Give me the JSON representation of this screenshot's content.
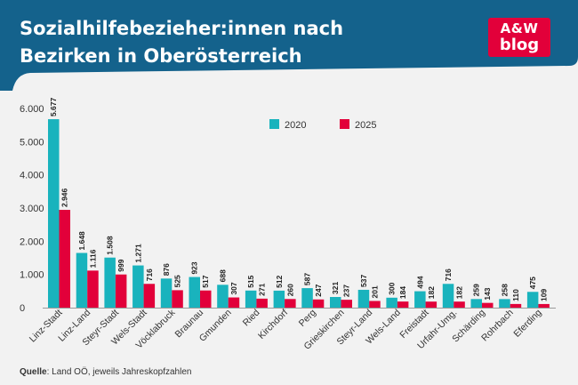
{
  "header": {
    "title": "Sozialhilfebezieher:innen nach Bezirken in Oberösterreich",
    "bg_color": "#14628c",
    "logo_line1": "A&W",
    "logo_line2": "blog"
  },
  "source": {
    "label": "Quelle",
    "text": ": Land OÖ, jeweils Jahreskopfzahlen"
  },
  "colors": {
    "series_2020": "#19b3bd",
    "series_2025": "#e2003a"
  },
  "chart_data": {
    "type": "bar",
    "title": "Sozialhilfebezieher:innen nach Bezirken in Oberösterreich",
    "categories": [
      "Linz-Stadt",
      "Linz-Land",
      "Steyr-Stadt",
      "Wels-Stadt",
      "Vöcklabruck",
      "Braunau",
      "Gmunden",
      "Ried",
      "Kirchdorf",
      "Perg",
      "Grieskirchen",
      "Steyr-Land",
      "Wels-Land",
      "Freistadt",
      "Urfahr-Umg.",
      "Schärding",
      "Rohrbach",
      "Eferding"
    ],
    "series": [
      {
        "name": "2020",
        "values": [
          5677,
          1648,
          1508,
          1271,
          876,
          923,
          688,
          515,
          512,
          587,
          321,
          537,
          300,
          494,
          716,
          259,
          258,
          475
        ],
        "labels": [
          "5.677",
          "1.648",
          "1.508",
          "1.271",
          "876",
          "923",
          "688",
          "515",
          "512",
          "587",
          "321",
          "537",
          "300",
          "494",
          "716",
          "259",
          "258",
          "475"
        ]
      },
      {
        "name": "2025",
        "values": [
          2946,
          1116,
          999,
          716,
          525,
          517,
          307,
          271,
          260,
          247,
          237,
          201,
          184,
          182,
          182,
          143,
          110,
          109
        ],
        "labels": [
          "2.946",
          "1.116",
          "999",
          "716",
          "525",
          "517",
          "307",
          "271",
          "260",
          "247",
          "237",
          "201",
          "184",
          "182",
          "182",
          "143",
          "110",
          "109"
        ]
      }
    ],
    "yticks": [
      0,
      1000,
      2000,
      3000,
      4000,
      5000,
      6000
    ],
    "ytick_labels": [
      "0",
      "1.000",
      "2.000",
      "3.000",
      "4.000",
      "5.000",
      "6.000"
    ],
    "ylim": [
      0,
      6000
    ],
    "grid": false,
    "legend_position": "top-center",
    "xlabel": "",
    "ylabel": ""
  }
}
